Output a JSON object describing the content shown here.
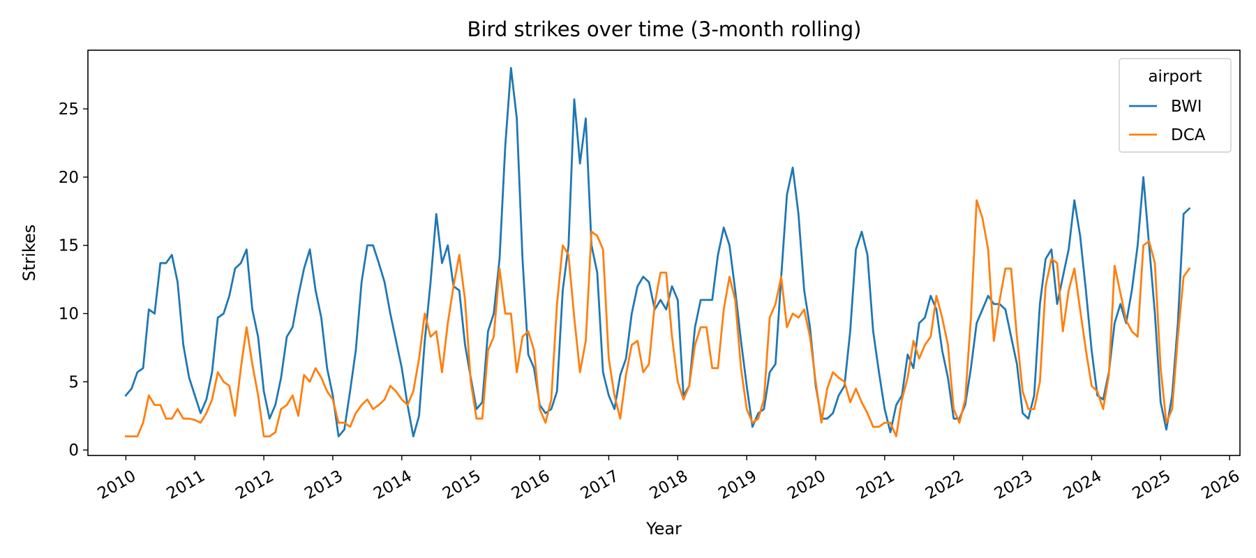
{
  "chart_data": {
    "type": "line",
    "title": "Bird strikes over time (3-month rolling)",
    "xlabel": "Year",
    "ylabel": "Strikes",
    "x_unit": "year",
    "xlim": [
      2009.45,
      2026.15
    ],
    "ylim": [
      -0.4,
      29.3
    ],
    "x_ticks": [
      2010,
      2011,
      2012,
      2013,
      2014,
      2015,
      2016,
      2017,
      2018,
      2019,
      2020,
      2021,
      2022,
      2023,
      2024,
      2025,
      2026
    ],
    "y_ticks": [
      0,
      5,
      10,
      15,
      20,
      25
    ],
    "grid": false,
    "legend": {
      "title": "airport",
      "position": "top-right"
    },
    "colors": {
      "BWI": "#1f77b4",
      "DCA": "#ff7f0e"
    },
    "x": [
      2010.0,
      2010.083,
      2010.167,
      2010.25,
      2010.333,
      2010.417,
      2010.5,
      2010.583,
      2010.667,
      2010.75,
      2010.833,
      2010.917,
      2011.0,
      2011.083,
      2011.167,
      2011.25,
      2011.333,
      2011.417,
      2011.5,
      2011.583,
      2011.667,
      2011.75,
      2011.833,
      2011.917,
      2012.0,
      2012.083,
      2012.167,
      2012.25,
      2012.333,
      2012.417,
      2012.5,
      2012.583,
      2012.667,
      2012.75,
      2012.833,
      2012.917,
      2013.0,
      2013.083,
      2013.167,
      2013.25,
      2013.333,
      2013.417,
      2013.5,
      2013.583,
      2013.667,
      2013.75,
      2013.833,
      2013.917,
      2014.0,
      2014.083,
      2014.167,
      2014.25,
      2014.333,
      2014.417,
      2014.5,
      2014.583,
      2014.667,
      2014.75,
      2014.833,
      2014.917,
      2015.0,
      2015.083,
      2015.167,
      2015.25,
      2015.333,
      2015.417,
      2015.5,
      2015.583,
      2015.667,
      2015.75,
      2015.833,
      2015.917,
      2016.0,
      2016.083,
      2016.167,
      2016.25,
      2016.333,
      2016.417,
      2016.5,
      2016.583,
      2016.667,
      2016.75,
      2016.833,
      2016.917,
      2017.0,
      2017.083,
      2017.167,
      2017.25,
      2017.333,
      2017.417,
      2017.5,
      2017.583,
      2017.667,
      2017.75,
      2017.833,
      2017.917,
      2018.0,
      2018.083,
      2018.167,
      2018.25,
      2018.333,
      2018.417,
      2018.5,
      2018.583,
      2018.667,
      2018.75,
      2018.833,
      2018.917,
      2019.0,
      2019.083,
      2019.167,
      2019.25,
      2019.333,
      2019.417,
      2019.5,
      2019.583,
      2019.667,
      2019.75,
      2019.833,
      2019.917,
      2020.0,
      2020.083,
      2020.167,
      2020.25,
      2020.333,
      2020.417,
      2020.5,
      2020.583,
      2020.667,
      2020.75,
      2020.833,
      2020.917,
      2021.0,
      2021.083,
      2021.167,
      2021.25,
      2021.333,
      2021.417,
      2021.5,
      2021.583,
      2021.667,
      2021.75,
      2021.833,
      2021.917,
      2022.0,
      2022.083,
      2022.167,
      2022.25,
      2022.333,
      2022.417,
      2022.5,
      2022.583,
      2022.667,
      2022.75,
      2022.833,
      2022.917,
      2023.0,
      2023.083,
      2023.167,
      2023.25,
      2023.333,
      2023.417,
      2023.5,
      2023.583,
      2023.667,
      2023.75,
      2023.833,
      2023.917,
      2024.0,
      2024.083,
      2024.167,
      2024.25,
      2024.333,
      2024.417,
      2024.5,
      2024.583,
      2024.667,
      2024.75,
      2024.833,
      2024.917,
      2025.0,
      2025.083,
      2025.167,
      2025.25,
      2025.333,
      2025.417
    ],
    "series": [
      {
        "name": "BWI",
        "values": [
          4.0,
          4.5,
          5.7,
          6.0,
          10.3,
          10.0,
          13.7,
          13.7,
          14.3,
          12.3,
          7.7,
          5.3,
          4.0,
          2.7,
          3.7,
          5.7,
          9.7,
          10.0,
          11.3,
          13.3,
          13.7,
          14.7,
          10.3,
          8.3,
          4.3,
          2.3,
          3.3,
          5.3,
          8.3,
          9.0,
          11.3,
          13.3,
          14.7,
          11.7,
          9.7,
          6.0,
          4.0,
          1.0,
          1.5,
          4.3,
          7.3,
          12.3,
          15.0,
          15.0,
          13.7,
          12.3,
          10.0,
          8.0,
          6.0,
          3.3,
          1.0,
          2.5,
          8.0,
          12.3,
          17.3,
          13.7,
          15.0,
          12.0,
          11.7,
          7.7,
          5.3,
          3.0,
          3.5,
          8.7,
          10.0,
          14.0,
          22.3,
          28.0,
          24.3,
          14.0,
          7.0,
          6.0,
          3.3,
          2.7,
          3.0,
          4.3,
          11.7,
          15.0,
          25.7,
          21.0,
          24.3,
          15.0,
          13.0,
          5.7,
          4.0,
          3.0,
          5.5,
          6.7,
          10.0,
          12.0,
          12.7,
          12.3,
          10.3,
          11.0,
          10.3,
          12.0,
          11.0,
          4.0,
          4.7,
          9.0,
          11.0,
          11.0,
          11.0,
          14.3,
          16.3,
          15.0,
          11.7,
          8.0,
          4.7,
          1.7,
          2.7,
          3.0,
          5.7,
          6.3,
          12.7,
          18.7,
          20.7,
          17.3,
          11.7,
          9.0,
          4.7,
          2.3,
          2.3,
          2.7,
          4.0,
          4.7,
          8.7,
          14.7,
          16.0,
          14.3,
          8.7,
          5.7,
          3.0,
          1.3,
          3.3,
          4.0,
          7.0,
          6.0,
          9.3,
          9.7,
          11.3,
          10.3,
          7.3,
          5.3,
          2.3,
          2.3,
          3.3,
          6.0,
          9.3,
          10.3,
          11.3,
          10.7,
          10.7,
          10.3,
          8.3,
          6.3,
          2.7,
          2.3,
          4.0,
          10.7,
          14.0,
          14.7,
          10.7,
          12.7,
          14.7,
          18.3,
          15.7,
          11.7,
          7.3,
          4.0,
          3.7,
          5.7,
          9.3,
          10.7,
          9.3,
          11.7,
          15.0,
          20.0,
          15.0,
          10.0,
          3.5,
          1.5,
          4.0,
          9.3,
          17.3,
          17.7
        ]
      },
      {
        "name": "DCA",
        "values": [
          1.0,
          1.0,
          1.0,
          2.0,
          4.0,
          3.3,
          3.3,
          2.3,
          2.3,
          3.0,
          2.3,
          2.3,
          2.2,
          2.0,
          2.7,
          3.7,
          5.7,
          5.0,
          4.7,
          2.5,
          6.0,
          9.0,
          6.3,
          4.0,
          1.0,
          1.0,
          1.3,
          3.0,
          3.3,
          4.0,
          2.5,
          5.5,
          5.0,
          6.0,
          5.3,
          4.3,
          3.7,
          2.0,
          2.0,
          1.7,
          2.7,
          3.3,
          3.7,
          3.0,
          3.3,
          3.7,
          4.7,
          4.3,
          3.7,
          3.3,
          4.3,
          6.7,
          10.0,
          8.3,
          8.7,
          5.7,
          9.3,
          12.0,
          14.3,
          11.0,
          5.0,
          2.3,
          2.3,
          7.3,
          8.3,
          13.3,
          10.0,
          10.0,
          5.7,
          8.3,
          8.7,
          7.3,
          3.0,
          2.0,
          3.7,
          10.7,
          15.0,
          14.3,
          9.7,
          5.7,
          8.0,
          16.0,
          15.7,
          14.7,
          6.7,
          4.0,
          2.3,
          5.5,
          7.7,
          8.0,
          5.7,
          6.3,
          10.7,
          13.0,
          13.0,
          8.3,
          5.0,
          3.7,
          4.7,
          7.7,
          9.0,
          9.0,
          6.0,
          6.0,
          10.3,
          12.7,
          11.0,
          6.0,
          3.0,
          2.0,
          2.3,
          3.7,
          9.7,
          10.7,
          12.7,
          9.0,
          10.0,
          9.7,
          10.3,
          8.3,
          5.0,
          2.0,
          4.5,
          5.7,
          5.3,
          5.0,
          3.5,
          4.5,
          3.5,
          2.7,
          1.7,
          1.7,
          2.0,
          2.0,
          1.0,
          3.7,
          5.3,
          8.0,
          6.7,
          7.7,
          8.3,
          11.3,
          9.7,
          7.7,
          3.0,
          2.0,
          3.7,
          9.7,
          18.3,
          17.0,
          14.7,
          8.0,
          11.0,
          13.3,
          13.3,
          8.3,
          4.3,
          3.0,
          3.0,
          5.0,
          12.0,
          14.0,
          13.7,
          8.7,
          11.7,
          13.3,
          10.3,
          7.3,
          4.7,
          4.3,
          3.0,
          5.5,
          13.5,
          11.5,
          9.5,
          8.7,
          8.3,
          15.0,
          15.3,
          13.7,
          6.0,
          2.0,
          3.0,
          8.3,
          12.7,
          13.3
        ]
      }
    ]
  }
}
